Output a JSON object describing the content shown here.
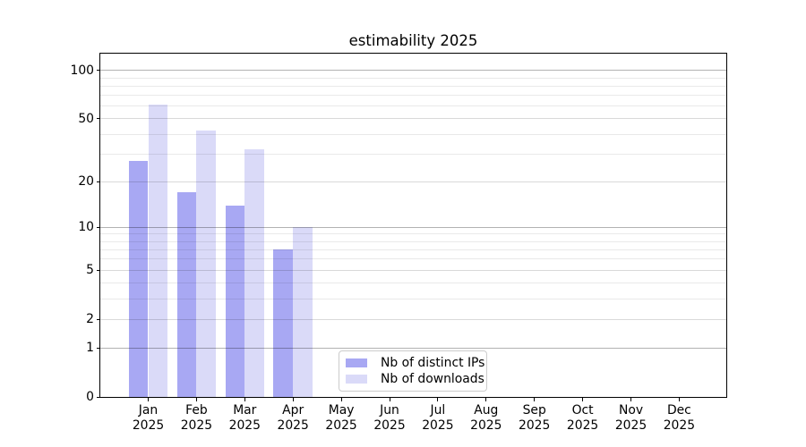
{
  "title": "estimability 2025",
  "chart_data": {
    "type": "bar",
    "title": "estimability 2025",
    "categories": [
      "Jan",
      "Feb",
      "Mar",
      "Apr",
      "May",
      "Jun",
      "Jul",
      "Aug",
      "Sep",
      "Oct",
      "Nov",
      "Dec"
    ],
    "category_year": "2025",
    "series": [
      {
        "name": "Nb of distinct IPs",
        "color": "#a8a8f3",
        "values": [
          27,
          17,
          14,
          7,
          null,
          null,
          null,
          null,
          null,
          null,
          null,
          null
        ]
      },
      {
        "name": "Nb of downloads",
        "color": "#dadaf8",
        "values": [
          61,
          42,
          32,
          10,
          null,
          null,
          null,
          null,
          null,
          null,
          null,
          null
        ]
      }
    ],
    "xlabel": "",
    "ylabel": "",
    "yscale": "log1p",
    "ylim": [
      0,
      127
    ],
    "yticks": [
      0,
      1,
      2,
      5,
      10,
      20,
      50,
      100
    ],
    "major_gridlines": [
      1,
      10,
      100
    ],
    "mid_gridlines": [
      2,
      5,
      20,
      50
    ],
    "minor_gridlines": [
      3,
      4,
      6,
      7,
      8,
      9,
      30,
      40,
      60,
      70,
      80,
      90
    ],
    "grid": "horizontal",
    "legend_position": "inside-bottom-center"
  }
}
